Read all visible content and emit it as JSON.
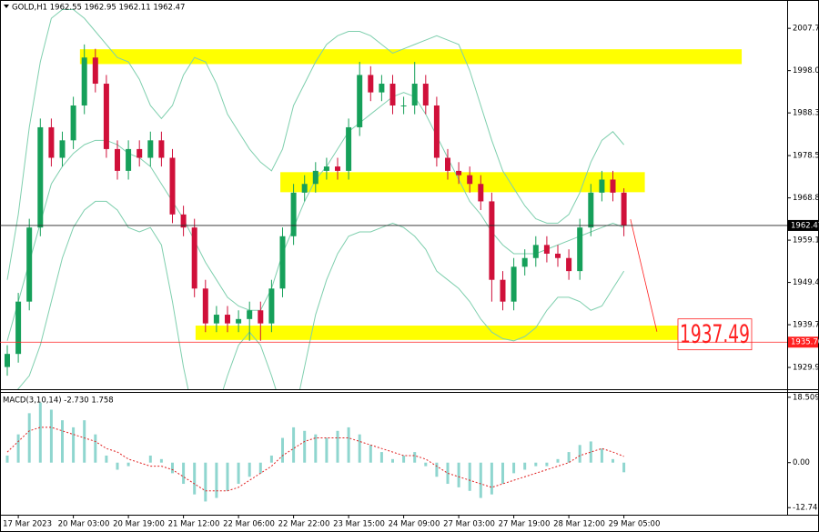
{
  "chart_data": [
    {
      "type": "candlestick",
      "title": "GOLD,H1  1962.55 1962.95 1962.11 1962.47",
      "categories": [
        null,
        "17 Mar 2023",
        null,
        null,
        null,
        null,
        "20 Mar 03:00",
        null,
        null,
        null,
        null,
        "20 Mar 19:00",
        null,
        null,
        null,
        null,
        "21 Mar 12:00",
        null,
        null,
        null,
        null,
        "22 Mar 06:00",
        null,
        null,
        null,
        null,
        "22 Mar 22:00",
        null,
        null,
        null,
        null,
        "23 Mar 15:00",
        null,
        null,
        null,
        null,
        "24 Mar 09:00",
        null,
        null,
        null,
        null,
        "27 Mar 03:00",
        null,
        null,
        null,
        null,
        "27 Mar 19:00",
        null,
        null,
        null,
        null,
        "28 Mar 12:00",
        null,
        null,
        null,
        null,
        "29 Mar 05:00"
      ],
      "open": [
        1930,
        1933,
        1945,
        1962,
        1985,
        1978,
        1982,
        1990,
        2001,
        1995,
        1980,
        1975,
        1980,
        1978,
        1982,
        1978,
        1965,
        1962,
        1948,
        1940,
        1942,
        1940,
        1941,
        1943,
        1940,
        1948,
        1960,
        1970,
        1972,
        1975,
        1976,
        1975,
        1985,
        1997,
        1993,
        1995,
        1990,
        1990,
        1995,
        1990,
        1978,
        1975,
        1974,
        1972,
        1968,
        1950,
        1945,
        1953,
        1955,
        1958,
        1956,
        1955,
        1952,
        1962,
        1970,
        1973,
        1970
      ],
      "high": [
        1935,
        1947,
        1964,
        1987,
        1987,
        1984,
        1992,
        2004,
        2003,
        1997,
        1982,
        1982,
        1982,
        1984,
        1984,
        1980,
        1967,
        1964,
        1950,
        1944,
        1944,
        1943,
        1945,
        1945,
        1950,
        1962,
        1972,
        1974,
        1977,
        1978,
        1978,
        1987,
        2000,
        1999,
        1997,
        1997,
        1992,
        2000,
        1997,
        1992,
        1980,
        1977,
        1976,
        1974,
        1970,
        1952,
        1955,
        1957,
        1960,
        1960,
        1958,
        1957,
        1964,
        1972,
        1975,
        1975,
        1971
      ],
      "low": [
        1928,
        1931,
        1943,
        1960,
        1976,
        1976,
        1980,
        1988,
        1993,
        1978,
        1973,
        1973,
        1976,
        1976,
        1976,
        1963,
        1960,
        1946,
        1938,
        1938,
        1938,
        1938,
        1936,
        1936,
        1938,
        1946,
        1958,
        1968,
        1970,
        1973,
        1973,
        1973,
        1983,
        1991,
        1991,
        1988,
        1988,
        1988,
        1988,
        1976,
        1973,
        1972,
        1970,
        1966,
        1945,
        1943,
        1943,
        1951,
        1953,
        1954,
        1953,
        1950,
        1950,
        1960,
        1968,
        1968,
        1960
      ],
      "close": [
        1933,
        1945,
        1962,
        1985,
        1978,
        1982,
        1990,
        2001,
        1995,
        1980,
        1975,
        1980,
        1978,
        1982,
        1978,
        1965,
        1962,
        1948,
        1940,
        1942,
        1940,
        1941,
        1943,
        1940,
        1948,
        1960,
        1970,
        1972,
        1975,
        1976,
        1975,
        1985,
        1997,
        1993,
        1995,
        1990,
        1990,
        1995,
        1990,
        1978,
        1975,
        1974,
        1972,
        1968,
        1950,
        1945,
        1953,
        1955,
        1958,
        1956,
        1955,
        1952,
        1962,
        1970,
        1973,
        1970,
        1962.47
      ],
      "up_color": "#16a05a",
      "down_color": "#d0103a",
      "bands": {
        "color": "#7fcfae",
        "upper": [
          1950,
          1965,
          1985,
          2000,
          2010,
          2012,
          2012,
          2010,
          2007,
          2004,
          2001,
          2000,
          1996,
          1990,
          1987,
          1990,
          1997,
          2001,
          2000,
          1995,
          1988,
          1984,
          1980,
          1977,
          1975,
          1980,
          1990,
          1995,
          2000,
          2004,
          2006,
          2007,
          2007,
          2006,
          2004,
          2002,
          2003,
          2004,
          2005,
          2006,
          2005,
          2004,
          1998,
          1990,
          1982,
          1975,
          1971,
          1967,
          1964,
          1963,
          1963,
          1965,
          1970,
          1977,
          1982,
          1984,
          1981
        ],
        "middle": [
          1936,
          1945,
          1954,
          1963,
          1972,
          1976,
          1979,
          1981,
          1982,
          1982,
          1981,
          1979,
          1978,
          1976,
          1972,
          1968,
          1964,
          1959,
          1954,
          1950,
          1946,
          1944,
          1943,
          1943,
          1948,
          1956,
          1962,
          1968,
          1973,
          1976,
          1980,
          1984,
          1986,
          1988,
          1990,
          1992,
          1993,
          1992,
          1988,
          1983,
          1978,
          1973,
          1968,
          1965,
          1961,
          1958,
          1956,
          1956,
          1956,
          1957,
          1958,
          1959,
          1960,
          1961,
          1962,
          1963,
          1962
        ],
        "lower": [
          1922,
          1925,
          1928,
          1935,
          1945,
          1955,
          1962,
          1966,
          1968,
          1968,
          1966,
          1962,
          1961,
          1962,
          1958,
          1945,
          1930,
          1918,
          1916,
          1920,
          1928,
          1935,
          1938,
          1935,
          1928,
          1920,
          1918,
          1930,
          1942,
          1950,
          1956,
          1960,
          1961,
          1961,
          1962,
          1963,
          1962,
          1960,
          1957,
          1952,
          1950,
          1948,
          1945,
          1941,
          1938,
          1936.5,
          1936,
          1937,
          1939,
          1943,
          1946,
          1946,
          1945,
          1943,
          1944,
          1948,
          1952
        ]
      },
      "ylim": [
        1924.9,
        2014.2
      ],
      "yticks": [
        {
          "value": 2007.7,
          "label": "2007.70"
        },
        {
          "value": 1998,
          "label": "1998.00"
        },
        {
          "value": 1988.3,
          "label": "1988.30"
        },
        {
          "value": 1978.5,
          "label": "1978.50"
        },
        {
          "value": 1968.8,
          "label": "1968.80"
        },
        {
          "value": 1959.1,
          "label": "1959.10"
        },
        {
          "value": 1949.4,
          "label": "1949.40"
        },
        {
          "value": 1939.7,
          "label": "1939.70"
        },
        {
          "value": 1929.9,
          "label": "1929.90"
        }
      ],
      "current_price": 1962.47,
      "level": {
        "value": 1935.7,
        "label": "1935.70"
      },
      "level_color": "#ff2020",
      "zone_color": "#ffff00",
      "zones": [
        {
          "x": [
            6.6,
            66.7
          ],
          "y": [
            1999.5,
            2002.9
          ]
        },
        {
          "x": [
            24.8,
            57.9
          ],
          "y": [
            1970.1,
            1974.7
          ]
        },
        {
          "x": [
            17.1,
            60.9
          ],
          "y": [
            1936.2,
            1939.5
          ]
        }
      ],
      "arrow": {
        "x": [
          56.6,
          59
        ],
        "y": [
          1963.9,
          1938.1
        ]
      },
      "target": 1937.49
    },
    {
      "type": "macd",
      "title": "MACD(3,10,14) -2.730 1.758",
      "histogram": [
        2,
        8,
        14,
        17,
        15,
        12,
        10,
        12,
        8,
        2,
        -2,
        -1,
        0,
        2,
        1,
        -3,
        -6,
        -9,
        -11,
        -10,
        -8,
        -6,
        -4,
        -3,
        2,
        7,
        10,
        9,
        8,
        7,
        9,
        10,
        8,
        5,
        3,
        1,
        2,
        3,
        -1,
        -4,
        -6,
        -7,
        -8,
        -10,
        -9,
        -6,
        -3,
        -2,
        -1,
        -1,
        1,
        3,
        5,
        6,
        4,
        1,
        -2.73
      ],
      "histogram_color": "#8fd6cf",
      "signal": [
        3,
        6,
        9,
        10,
        10,
        9,
        8,
        7,
        6,
        4,
        3,
        1,
        0,
        -1,
        -1,
        -2,
        -4,
        -6,
        -8,
        -8,
        -8,
        -7,
        -5,
        -3,
        -1,
        2,
        4,
        6,
        7,
        7,
        7,
        7,
        6,
        5,
        4,
        3,
        2,
        2,
        1,
        -1,
        -3,
        -4,
        -5,
        -6,
        -7,
        -6,
        -5,
        -4,
        -3,
        -2,
        -1,
        0,
        2,
        3,
        4,
        3,
        1.758
      ],
      "signal_color": "#e02020",
      "ylim": [
        -14.75,
        19.76
      ],
      "yticks": [
        18.509,
        {
          "value": 0,
          "label": "0.00"
        },
        -12.745
      ]
    }
  ]
}
